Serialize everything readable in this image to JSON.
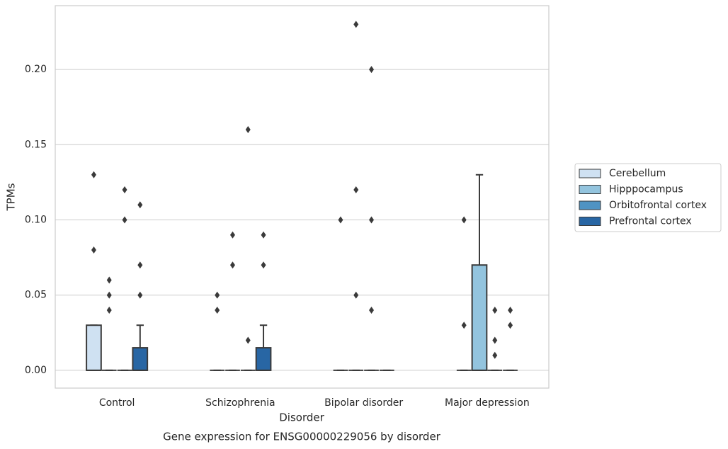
{
  "chart_data": {
    "type": "box",
    "title": "Gene expression for ENSG00000229056 by disorder",
    "xlabel": "Disorder",
    "ylabel": "TPMs",
    "categories": [
      "Control",
      "Schizophrenia",
      "Bipolar disorder",
      "Major depression"
    ],
    "ylim": [
      -0.0118,
      0.2424
    ],
    "yticks": [
      {
        "value": 0,
        "label": "0.00"
      },
      {
        "value": 0.05,
        "label": "0.05"
      },
      {
        "value": 0.1,
        "label": "0.10"
      },
      {
        "value": 0.15,
        "label": "0.15"
      },
      {
        "value": 0.2,
        "label": "0.20"
      }
    ],
    "grid": true,
    "legend": "right",
    "series": [
      {
        "name": "Cerebellum",
        "color": "#cfe1f2",
        "boxes": [
          {
            "q1": 0,
            "median": 0,
            "q3": 0.03,
            "whislo": 0,
            "whishi": 0.03,
            "fliers": [
              0.13,
              0.08
            ]
          },
          {
            "q1": 0,
            "median": 0,
            "q3": 0,
            "whislo": 0,
            "whishi": 0,
            "fliers": [
              0.05,
              0.04
            ]
          },
          {
            "q1": 0,
            "median": 0,
            "q3": 0,
            "whislo": 0,
            "whishi": 0,
            "fliers": [
              0.1
            ]
          },
          {
            "q1": 0,
            "median": 0,
            "q3": 0,
            "whislo": 0,
            "whishi": 0,
            "fliers": [
              0.1,
              0.03
            ]
          }
        ]
      },
      {
        "name": "Hipppocampus",
        "color": "#93c4de",
        "boxes": [
          {
            "q1": 0,
            "median": 0,
            "q3": 0,
            "whislo": 0,
            "whishi": 0,
            "fliers": [
              0.06,
              0.05,
              0.04
            ]
          },
          {
            "q1": 0,
            "median": 0,
            "q3": 0,
            "whislo": 0,
            "whishi": 0,
            "fliers": [
              0.09,
              0.07
            ]
          },
          {
            "q1": 0,
            "median": 0,
            "q3": 0,
            "whislo": 0,
            "whishi": 0,
            "fliers": [
              0.23,
              0.12,
              0.05
            ]
          },
          {
            "q1": 0,
            "median": 0,
            "q3": 0.07,
            "whislo": 0,
            "whishi": 0.13,
            "fliers": []
          }
        ]
      },
      {
        "name": "Orbitofrontal cortex",
        "color": "#4f93c3",
        "boxes": [
          {
            "q1": 0,
            "median": 0,
            "q3": 0,
            "whislo": 0,
            "whishi": 0,
            "fliers": [
              0.12,
              0.1
            ]
          },
          {
            "q1": 0,
            "median": 0,
            "q3": 0,
            "whislo": 0,
            "whishi": 0,
            "fliers": [
              0.16,
              0.02
            ]
          },
          {
            "q1": 0,
            "median": 0,
            "q3": 0,
            "whislo": 0,
            "whishi": 0,
            "fliers": [
              0.2,
              0.1,
              0.04
            ]
          },
          {
            "q1": 0,
            "median": 0,
            "q3": 0,
            "whislo": 0,
            "whishi": 0,
            "fliers": [
              0.04,
              0.02,
              0.01
            ]
          }
        ]
      },
      {
        "name": "Prefrontal cortex",
        "color": "#2866a4",
        "boxes": [
          {
            "q1": 0,
            "median": 0,
            "q3": 0.015,
            "whislo": 0,
            "whishi": 0.03,
            "fliers": [
              0.11,
              0.07,
              0.05
            ]
          },
          {
            "q1": 0,
            "median": 0,
            "q3": 0.015,
            "whislo": 0,
            "whishi": 0.03,
            "fliers": [
              0.09,
              0.07
            ]
          },
          {
            "q1": 0,
            "median": 0,
            "q3": 0,
            "whislo": 0,
            "whishi": 0,
            "fliers": []
          },
          {
            "q1": 0,
            "median": 0,
            "q3": 0,
            "whislo": 0,
            "whishi": 0,
            "fliers": [
              0.04,
              0.03
            ]
          }
        ]
      }
    ]
  }
}
